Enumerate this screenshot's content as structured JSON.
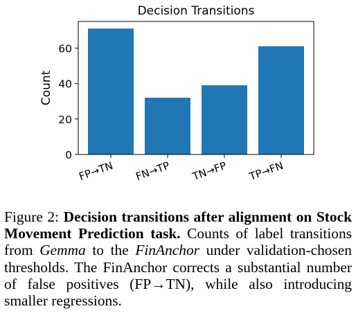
{
  "chart_data": {
    "type": "bar",
    "title": "Decision Transitions",
    "xlabel": "",
    "ylabel": "Count",
    "categories": [
      "FP→TN",
      "FN→TP",
      "TN→FP",
      "TP→FN"
    ],
    "values": [
      71,
      32,
      39,
      61
    ],
    "ylim": [
      0,
      75
    ],
    "yticks": [
      0,
      20,
      40,
      60
    ],
    "bar_color": "#1f77b4",
    "grid": false,
    "legend": "none"
  },
  "caption": {
    "label": "Figure 2:",
    "bold": "Decision transitions after alignment on Stock Movement Prediction task.",
    "t1": " Counts of label transitions from ",
    "gemma": "Gemma",
    "t2": " to the ",
    "financhor": "FinAnchor",
    "t3": " under validation-chosen thresholds. The FinAnchor corrects a substantial number of false positives (FP→TN), while also introducing smaller regressions."
  }
}
